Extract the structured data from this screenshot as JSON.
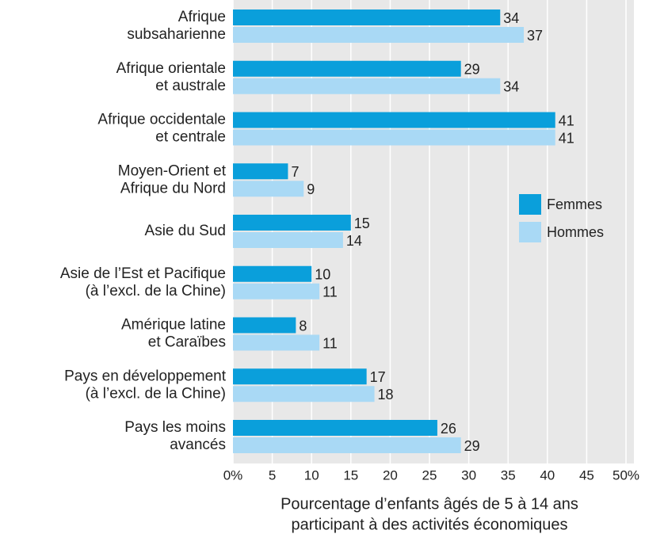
{
  "chart_data": {
    "type": "bar",
    "orientation": "horizontal",
    "categories": [
      [
        "Afrique",
        "subsaharienne"
      ],
      [
        "Afrique orientale",
        "et australe"
      ],
      [
        "Afrique occidentale",
        "et centrale"
      ],
      [
        "Moyen-Orient et",
        "Afrique du Nord"
      ],
      [
        "Asie du Sud"
      ],
      [
        "Asie de l’Est et Pacifique",
        "(à l’excl. de la Chine)"
      ],
      [
        "Amérique latine",
        "et Caraïbes"
      ],
      [
        "Pays en développement",
        "(à l’excl. de la Chine)"
      ],
      [
        "Pays les moins",
        "avancés"
      ]
    ],
    "series": [
      {
        "name": "Femmes",
        "color": "#0a9fdb",
        "values": [
          34,
          29,
          41,
          7,
          15,
          10,
          8,
          17,
          26
        ]
      },
      {
        "name": "Hommes",
        "color": "#a9d9f5",
        "values": [
          37,
          34,
          41,
          9,
          14,
          11,
          11,
          18,
          29
        ]
      }
    ],
    "xlabel": [
      "Pourcentage d’enfants âgés de 5 à 14 ans",
      "participant à des activités économiques"
    ],
    "xlim": [
      0,
      50
    ],
    "xticks": [
      {
        "value": 0,
        "label": "0%"
      },
      5,
      10,
      15,
      20,
      25,
      30,
      35,
      40,
      45,
      {
        "value": 50,
        "label": "50%"
      }
    ],
    "grid": true,
    "legend": "right"
  }
}
